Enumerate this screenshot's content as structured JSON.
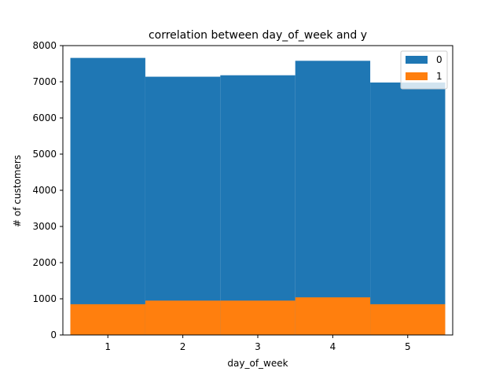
{
  "chart_data": {
    "type": "bar",
    "title": "correlation between day_of_week and y",
    "xlabel": "day_of_week",
    "ylabel": "# of customers",
    "categories": [
      1,
      2,
      3,
      4,
      5
    ],
    "xlim": [
      0.4,
      5.6
    ],
    "ylim": [
      0,
      8000
    ],
    "yticks": [
      0,
      1000,
      2000,
      3000,
      4000,
      5000,
      6000,
      7000,
      8000
    ],
    "bar_width": 1.0,
    "grid": false,
    "legend_position": "top-right",
    "series": [
      {
        "name": "0",
        "color": "#1f77b4",
        "values": [
          7660,
          7140,
          7180,
          7580,
          6980
        ]
      },
      {
        "name": "1",
        "color": "#ff7f0e",
        "values": [
          850,
          950,
          950,
          1040,
          850
        ]
      }
    ]
  }
}
